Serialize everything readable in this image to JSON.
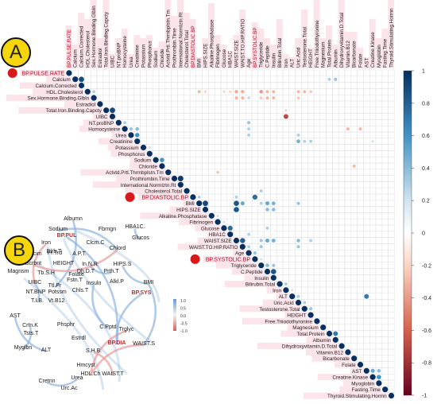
{
  "panels": {
    "a_label": "A",
    "b_label": "B"
  },
  "colors": {
    "positive": "#2166ac",
    "negative": "#b2182b",
    "label_highlight": "#fbe4ea",
    "network_positive": "#8fb4de",
    "network_negative": "#e79a9a"
  },
  "chart_data": [
    {
      "type": "heatmap",
      "subtype": "correlation-matrix (upper triangle, circle markers)",
      "variables": [
        "BP.PULSE.RATE",
        "Calcium",
        "Calcium.Corrected",
        "HDL.Cholesterol",
        "Sex.Hormone.Binding.Glbln",
        "Estradiol",
        "Total.Iron.Binding.Capcty",
        "UIBC",
        "NT.proBNP",
        "Homocysteine",
        "Urea",
        "Creatinine",
        "Potassium",
        "Phosphorus",
        "Sodium",
        "Chloride",
        "Actvtd.Prtl.Thrmbplstn.Tm",
        "Prothrombin.Time",
        "International.Normlztn.Rt",
        "Cholesterol.Total",
        "BP.DIASTOLIC.BP",
        "BMI",
        "HIPS.SIZE",
        "Alkaline.Phosphatase",
        "Fibrinogen",
        "Glucose",
        "HBA1C",
        "WAIST.SIZE",
        "WAIST.TO.HIP.RATIO",
        "Age",
        "BP.SYSTOLIC.BP",
        "Triglyceride",
        "C.Peptide",
        "Insulin",
        "Bilirubin.Total",
        "Iron",
        "ALT",
        "Uric.Acid",
        "Testosterone.Total",
        "HEIGHT",
        "Free.Triiodothyronine",
        "Magnesium",
        "Total.Protein",
        "Albumin",
        "Dihydroxyvitamin.D.Total",
        "Vitamin.B12",
        "Bicarbonate",
        "Folate",
        "AST",
        "Creatine.Kinase",
        "Myoglobin",
        "Fasting.Time",
        "Thyroid.Stimulating.Hormn"
      ],
      "highlighted": [
        "BP.PULSE.RATE",
        "BP.DIASTOLIC.BP",
        "BP.SYSTOLIC.BP"
      ],
      "correlations": [
        {
          "row": "Calcium",
          "col": "Calcium.Corrected",
          "r": 0.88
        },
        {
          "row": "Calcium",
          "col": "Albumin",
          "r": 0.35
        },
        {
          "row": "Calcium",
          "col": "Total.Protein",
          "r": 0.3
        },
        {
          "row": "HDL.Cholesterol",
          "col": "Sex.Hormone.Binding.Glbln",
          "r": 0.3
        },
        {
          "row": "HDL.Cholesterol",
          "col": "Triglyceride",
          "r": -0.4
        },
        {
          "row": "HDL.Cholesterol",
          "col": "WAIST.SIZE",
          "r": -0.35
        },
        {
          "row": "HDL.Cholesterol",
          "col": "WAIST.TO.HIP.RATIO",
          "r": -0.35
        },
        {
          "row": "HDL.Cholesterol",
          "col": "BMI",
          "r": -0.3
        },
        {
          "row": "HDL.Cholesterol",
          "col": "HIPS.SIZE",
          "r": -0.2
        },
        {
          "row": "HDL.Cholesterol",
          "col": "C.Peptide",
          "r": -0.3
        },
        {
          "row": "HDL.Cholesterol",
          "col": "Insulin",
          "r": -0.3
        },
        {
          "row": "HDL.Cholesterol",
          "col": "Uric.Acid",
          "r": -0.3
        },
        {
          "row": "HDL.Cholesterol",
          "col": "Testosterone.Total",
          "r": -0.3
        },
        {
          "row": "HDL.Cholesterol",
          "col": "HEIGHT",
          "r": -0.25
        },
        {
          "row": "HDL.Cholesterol",
          "col": "Glucose",
          "r": -0.2
        },
        {
          "row": "HDL.Cholesterol",
          "col": "HBA1C",
          "r": -0.2
        },
        {
          "row": "Sex.Hormone.Binding.Glbln",
          "col": "WAIST.SIZE",
          "r": -0.3
        },
        {
          "row": "Sex.Hormone.Binding.Glbln",
          "col": "WAIST.TO.HIP.RATIO",
          "r": -0.3
        },
        {
          "row": "Sex.Hormone.Binding.Glbln",
          "col": "C.Peptide",
          "r": -0.3
        },
        {
          "row": "Sex.Hormone.Binding.Glbln",
          "col": "Insulin",
          "r": -0.3
        },
        {
          "row": "Sex.Hormone.Binding.Glbln",
          "col": "Triglyceride",
          "r": -0.25
        },
        {
          "row": "Sex.Hormone.Binding.Glbln",
          "col": "Age",
          "r": 0.25
        },
        {
          "row": "Sex.Hormone.Binding.Glbln",
          "col": "Uric.Acid",
          "r": -0.25
        },
        {
          "row": "Total.Iron.Binding.Capcty",
          "col": "UIBC",
          "r": 0.9
        },
        {
          "row": "Total.Iron.Binding.Capcty",
          "col": "Iron",
          "r": -0.2
        },
        {
          "row": "UIBC",
          "col": "Iron",
          "r": -0.7
        },
        {
          "row": "NT.proBNP",
          "col": "Homocysteine",
          "r": 0.3
        },
        {
          "row": "NT.proBNP",
          "col": "Age",
          "r": 0.35
        },
        {
          "row": "Homocysteine",
          "col": "Urea",
          "r": 0.35
        },
        {
          "row": "Homocysteine",
          "col": "Creatinine",
          "r": 0.4
        },
        {
          "row": "Homocysteine",
          "col": "Age",
          "r": 0.3
        },
        {
          "row": "Homocysteine",
          "col": "Folate",
          "r": -0.3
        },
        {
          "row": "Homocysteine",
          "col": "Vitamin.B12",
          "r": -0.3
        },
        {
          "row": "Urea",
          "col": "Creatinine",
          "r": 0.6
        },
        {
          "row": "Urea",
          "col": "Age",
          "r": 0.3
        },
        {
          "row": "Urea",
          "col": "Uric.Acid",
          "r": 0.3
        },
        {
          "row": "Creatinine",
          "col": "Uric.Acid",
          "r": 0.45
        },
        {
          "row": "Creatinine",
          "col": "HEIGHT",
          "r": 0.3
        },
        {
          "row": "Creatinine",
          "col": "Testosterone.Total",
          "r": 0.3
        },
        {
          "row": "Creatinine",
          "col": "Creatine.Kinase",
          "r": 0.2
        },
        {
          "row": "Potassium",
          "col": "Phosphorus",
          "r": 0.2
        },
        {
          "row": "Sodium",
          "col": "Chloride",
          "r": 0.6
        },
        {
          "row": "Chloride",
          "col": "Bicarbonate",
          "r": -0.3
        },
        {
          "row": "Actvtd.Prtl.Thrmbplstn.Tm",
          "col": "Fibrinogen",
          "r": -0.25
        },
        {
          "row": "Prothrombin.Time",
          "col": "International.Normlztn.Rt",
          "r": 0.95
        },
        {
          "row": "Cholesterol.Total",
          "col": "Triglyceride",
          "r": 0.3
        },
        {
          "row": "BP.DIASTOLIC.BP",
          "col": "BP.SYSTOLIC.BP",
          "r": 0.75
        },
        {
          "row": "BP.DIASTOLIC.BP",
          "col": "BMI",
          "r": 0.3
        },
        {
          "row": "BP.DIASTOLIC.BP",
          "col": "WAIST.SIZE",
          "r": 0.3
        },
        {
          "row": "BMI",
          "col": "HIPS.SIZE",
          "r": 0.9
        },
        {
          "row": "BMI",
          "col": "WAIST.SIZE",
          "r": 0.85
        },
        {
          "row": "BMI",
          "col": "WAIST.TO.HIP.RATIO",
          "r": 0.5
        },
        {
          "row": "BMI",
          "col": "C.Peptide",
          "r": 0.5
        },
        {
          "row": "BMI",
          "col": "Insulin",
          "r": 0.45
        },
        {
          "row": "BMI",
          "col": "Triglyceride",
          "r": 0.3
        },
        {
          "row": "BMI",
          "col": "Uric.Acid",
          "r": 0.35
        },
        {
          "row": "HIPS.SIZE",
          "col": "WAIST.SIZE",
          "r": 0.85
        },
        {
          "row": "HIPS.SIZE",
          "col": "C.Peptide",
          "r": 0.4
        },
        {
          "row": "HIPS.SIZE",
          "col": "Insulin",
          "r": 0.4
        },
        {
          "row": "Alkaline.Phosphatase",
          "col": "Fibrinogen",
          "r": 0.2
        },
        {
          "row": "Fibrinogen",
          "col": "Glucose",
          "r": 0.2
        },
        {
          "row": "Glucose",
          "col": "HBA1C",
          "r": 0.75
        },
        {
          "row": "Glucose",
          "col": "C.Peptide",
          "r": 0.3
        },
        {
          "row": "HBA1C",
          "col": "Age",
          "r": 0.3
        },
        {
          "row": "WAIST.SIZE",
          "col": "WAIST.TO.HIP.RATIO",
          "r": 0.8
        },
        {
          "row": "WAIST.SIZE",
          "col": "Triglyceride",
          "r": 0.35
        },
        {
          "row": "WAIST.SIZE",
          "col": "C.Peptide",
          "r": 0.5
        },
        {
          "row": "WAIST.SIZE",
          "col": "Insulin",
          "r": 0.45
        },
        {
          "row": "WAIST.SIZE",
          "col": "Uric.Acid",
          "r": 0.4
        },
        {
          "row": "WAIST.SIZE",
          "col": "HEIGHT",
          "r": 0.3
        },
        {
          "row": "WAIST.TO.HIP.RATIO",
          "col": "Age",
          "r": 0.3
        },
        {
          "row": "WAIST.TO.HIP.RATIO",
          "col": "Triglyceride",
          "r": 0.35
        },
        {
          "row": "WAIST.TO.HIP.RATIO",
          "col": "Uric.Acid",
          "r": 0.35
        },
        {
          "row": "Age",
          "col": "BP.SYSTOLIC.BP",
          "r": 0.35
        },
        {
          "row": "BP.SYSTOLIC.BP",
          "col": "Triglyceride",
          "r": 0.2
        },
        {
          "row": "Triglyceride",
          "col": "C.Peptide",
          "r": 0.4
        },
        {
          "row": "Triglyceride",
          "col": "Insulin",
          "r": 0.35
        },
        {
          "row": "C.Peptide",
          "col": "Insulin",
          "r": 0.85
        },
        {
          "row": "Bilirubin.Total",
          "col": "Iron",
          "r": 0.3
        },
        {
          "row": "Iron",
          "col": "ALT",
          "r": 0.2
        },
        {
          "row": "ALT",
          "col": "AST",
          "r": 0.7
        },
        {
          "row": "ALT",
          "col": "Uric.Acid",
          "r": 0.3
        },
        {
          "row": "Uric.Acid",
          "col": "Testosterone.Total",
          "r": 0.3
        },
        {
          "row": "Testosterone.Total",
          "col": "HEIGHT",
          "r": 0.35
        },
        {
          "row": "Total.Protein",
          "col": "Albumin",
          "r": 0.7
        },
        {
          "row": "AST",
          "col": "Creatine.Kinase",
          "r": 0.5
        },
        {
          "row": "AST",
          "col": "Myoglobin",
          "r": 0.4
        },
        {
          "row": "Creatine.Kinase",
          "col": "Myoglobin",
          "r": 0.6
        }
      ],
      "colorbar": {
        "ticks": [
          "1",
          "0.8",
          "0.6",
          "0.4",
          "0.2",
          "0",
          "-0.2",
          "-0.4",
          "-0.6",
          "-0.8",
          "-1"
        ],
        "range": [
          -1,
          1
        ]
      }
    },
    {
      "type": "network",
      "nodes": [
        {
          "label": "Albumn",
          "highlight": false
        },
        {
          "label": "Sodium",
          "highlight": false
        },
        {
          "label": "Fbrngn",
          "highlight": false
        },
        {
          "label": "HBA1C.",
          "highlight": false
        },
        {
          "label": "BP.PUL",
          "highlight": true
        },
        {
          "label": "Iron",
          "highlight": false
        },
        {
          "label": "Blrb.T",
          "highlight": false
        },
        {
          "label": "Clcm.C",
          "highlight": false
        },
        {
          "label": "Glucos",
          "highlight": false
        },
        {
          "label": "Chlord",
          "highlight": false
        },
        {
          "label": "Calcim",
          "highlight": false
        },
        {
          "label": "Fr.Trd",
          "highlight": false
        },
        {
          "label": "A.P.T.",
          "highlight": false
        },
        {
          "label": "Bcrbnt",
          "highlight": false
        },
        {
          "label": "HEIGHT",
          "highlight": false
        },
        {
          "label": "In.N.R",
          "highlight": false
        },
        {
          "label": "HIPS.S",
          "highlight": false
        },
        {
          "label": "Magnsm",
          "highlight": false
        },
        {
          "label": "Tb.S.H",
          "highlight": false
        },
        {
          "label": "Folate",
          "highlight": false
        },
        {
          "label": "Dh.D.T",
          "highlight": false
        },
        {
          "label": "Prth.T",
          "highlight": false
        },
        {
          "label": "UIBC",
          "highlight": false
        },
        {
          "label": "Ttl.Pr",
          "highlight": false
        },
        {
          "label": "Fstn.T",
          "highlight": false
        },
        {
          "label": "Insuln",
          "highlight": false
        },
        {
          "label": "Alkl.P",
          "highlight": false
        },
        {
          "label": "BMI",
          "highlight": false
        },
        {
          "label": "NT.BNP",
          "highlight": false
        },
        {
          "label": "Potssm",
          "highlight": false
        },
        {
          "label": "Chls.T",
          "highlight": false
        },
        {
          "label": "T.I.B.",
          "highlight": false
        },
        {
          "label": "BP.SYS",
          "highlight": true
        },
        {
          "label": "AST",
          "highlight": false
        },
        {
          "label": "Vt.B12",
          "highlight": false
        },
        {
          "label": "Crtn.K",
          "highlight": false
        },
        {
          "label": "Phsphr",
          "highlight": false
        },
        {
          "label": "C.Pptd",
          "highlight": false
        },
        {
          "label": "Trglyc",
          "highlight": false
        },
        {
          "label": "Tsts.T",
          "highlight": false
        },
        {
          "label": "Estrdl",
          "highlight": false
        },
        {
          "label": "BP.DIA",
          "highlight": true
        },
        {
          "label": "WAIST.S",
          "highlight": false
        },
        {
          "label": "Myglbn",
          "highlight": false
        },
        {
          "label": "ALT",
          "highlight": false
        },
        {
          "label": "S.H.B.",
          "highlight": false
        },
        {
          "label": "Hmcyst",
          "highlight": false
        },
        {
          "label": "HDL.Ch",
          "highlight": false
        },
        {
          "label": "WAIST.T",
          "highlight": false
        },
        {
          "label": "Cretnn",
          "highlight": false
        },
        {
          "label": "Urea",
          "highlight": false
        },
        {
          "label": "Urc.Ac",
          "highlight": false
        }
      ],
      "edges": [
        {
          "a": "BP.DIA",
          "b": "BP.SYS",
          "sign": "positive"
        },
        {
          "a": "BMI",
          "b": "HIPS.S",
          "sign": "positive"
        },
        {
          "a": "BMI",
          "b": "WAIST.S",
          "sign": "positive"
        },
        {
          "a": "C.Pptd",
          "b": "Insuln",
          "sign": "positive"
        },
        {
          "a": "Glucos",
          "b": "HBA1C.",
          "sign": "positive"
        },
        {
          "a": "Urea",
          "b": "Cretnn",
          "sign": "positive"
        },
        {
          "a": "ALT",
          "b": "AST",
          "sign": "positive"
        },
        {
          "a": "Crtn.K",
          "b": "Myglbn",
          "sign": "positive"
        },
        {
          "a": "UIBC",
          "b": "T.I.B.",
          "sign": "positive"
        },
        {
          "a": "Prth.T",
          "b": "In.N.R",
          "sign": "positive"
        },
        {
          "a": "Sodium",
          "b": "Chlord",
          "sign": "positive"
        },
        {
          "a": "Albumn",
          "b": "Ttl.Pr",
          "sign": "positive"
        },
        {
          "a": "HDL.Ch",
          "b": "Trglyc",
          "sign": "negative"
        },
        {
          "a": "HDL.Ch",
          "b": "WAIST.S",
          "sign": "negative"
        },
        {
          "a": "S.H.B.",
          "b": "WAIST.T",
          "sign": "negative"
        },
        {
          "a": "UIBC",
          "b": "Iron",
          "sign": "negative"
        },
        {
          "a": "Chlord",
          "b": "Bcrbnt",
          "sign": "negative"
        },
        {
          "a": "BP.PUL",
          "b": "BP.DIA",
          "sign": "positive"
        }
      ],
      "legend": {
        "ticks": [
          "1.0",
          "0.5",
          "0.0",
          "-0.5",
          "-1.0"
        ]
      }
    }
  ]
}
